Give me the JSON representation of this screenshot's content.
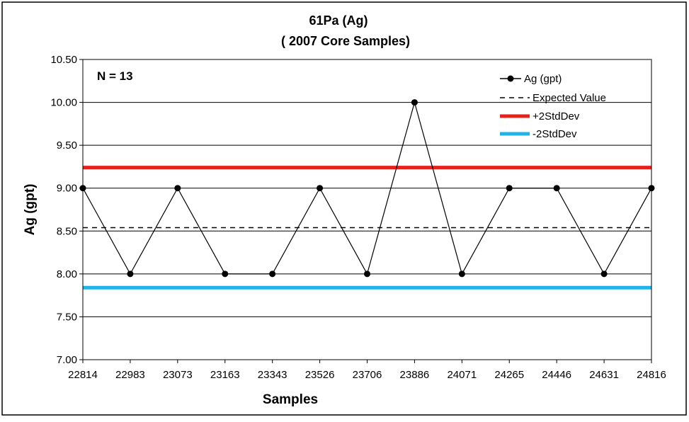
{
  "chart_data": {
    "type": "line",
    "title": "61Pa (Ag)",
    "subtitle": "( 2007 Core Samples)",
    "xlabel": "Samples",
    "ylabel": "Ag (gpt)",
    "annotation": "N = 13",
    "categories": [
      "22814",
      "22983",
      "23073",
      "23163",
      "23343",
      "23526",
      "23706",
      "23886",
      "24071",
      "24265",
      "24446",
      "24631",
      "24816"
    ],
    "series": [
      {
        "name": "Ag (gpt)",
        "values": [
          9,
          8,
          9,
          8,
          8,
          9,
          8,
          10,
          8,
          9,
          9,
          8,
          9
        ],
        "color": "#000000",
        "style": "solid-with-markers"
      },
      {
        "name": "Expected Value",
        "value": 8.54,
        "color": "#000000",
        "style": "dashed"
      },
      {
        "name": "+2StdDev",
        "value": 9.24,
        "color": "#e8201a",
        "style": "thick"
      },
      {
        "name": "-2StdDev",
        "value": 7.84,
        "color": "#1fb4e8",
        "style": "thick"
      }
    ],
    "ylim": [
      7.0,
      10.5
    ],
    "yticks": [
      "7.00",
      "7.50",
      "8.00",
      "8.50",
      "9.00",
      "9.50",
      "10.00",
      "10.50"
    ],
    "grid": true,
    "legend_position": "top-right"
  }
}
